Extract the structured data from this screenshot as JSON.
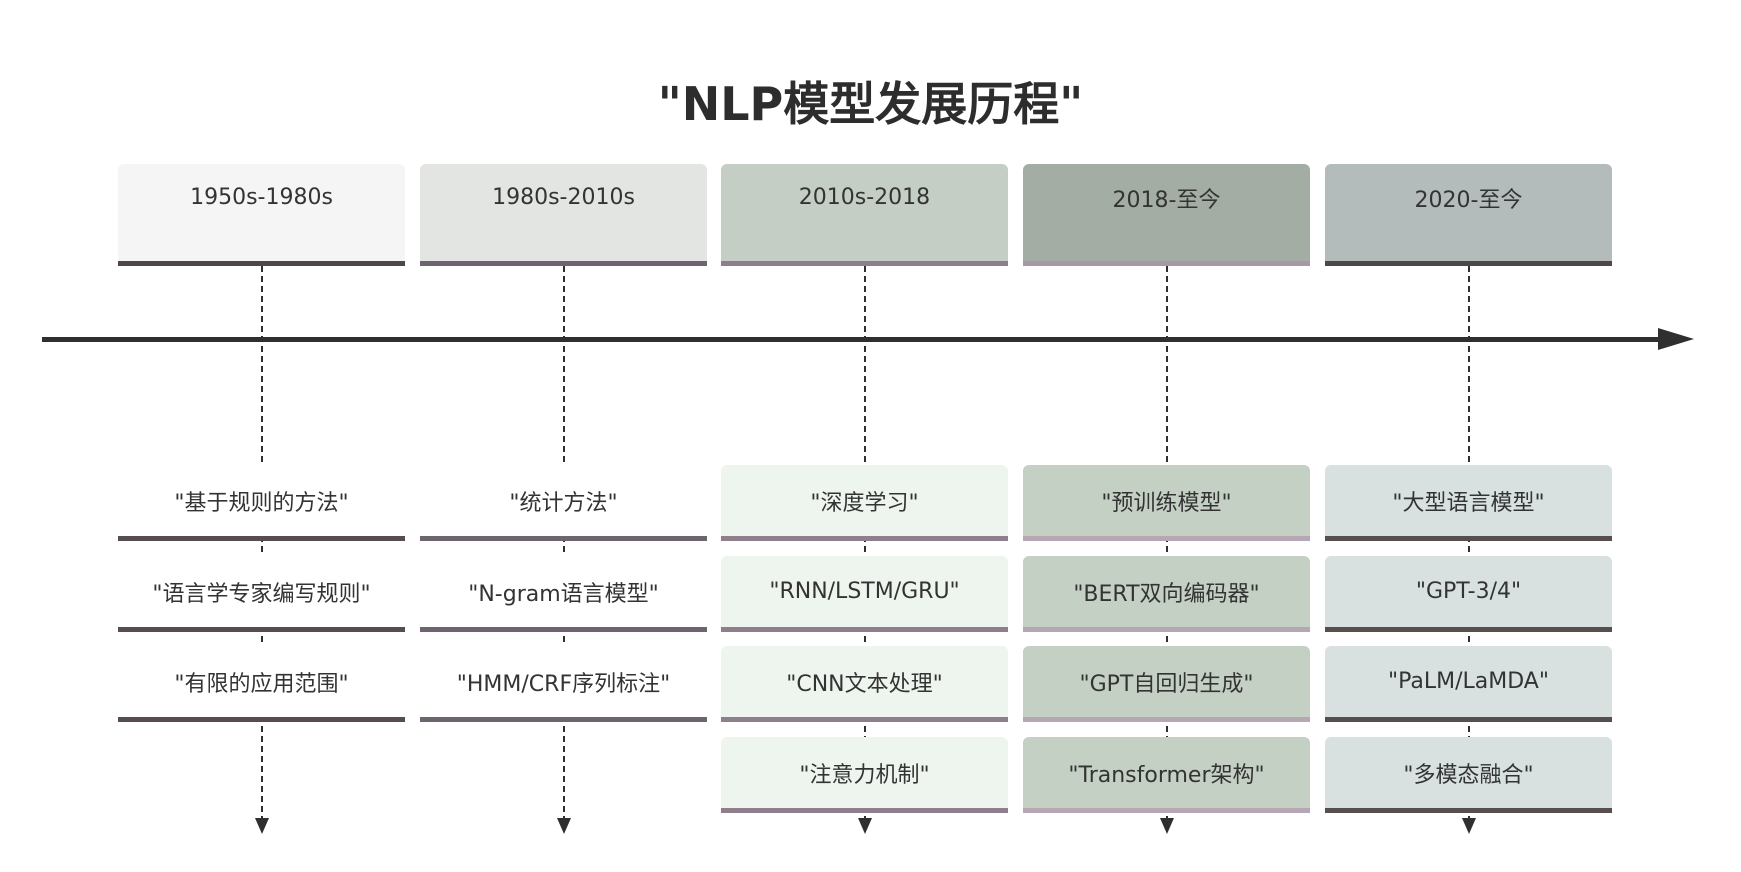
{
  "title": "\"NLP模型发展历程\"",
  "periods": [
    {
      "label": "1950s-1980s",
      "header_bg": "#f5f5f5",
      "header_border": "#4e4648",
      "item_bg": "#ffffff",
      "item_border": "#564c52",
      "items": [
        "\"基于规则的方法\"",
        "\"语言学专家编写规则\"",
        "\"有限的应用范围\""
      ]
    },
    {
      "label": "1980s-2010s",
      "header_bg": "#e3e5e2",
      "header_border": "#6e6470",
      "item_bg": "#ffffff",
      "item_border": "#6e6470",
      "items": [
        "\"统计方法\"",
        "\"N-gram语言模型\"",
        "\"HMM/CRF序列标注\""
      ]
    },
    {
      "label": "2010s-2018",
      "header_bg": "#c5cec5",
      "header_border": "#8e7f8c",
      "item_bg": "#eef4ee",
      "item_border": "#8e7f8c",
      "items": [
        "\"深度学习\"",
        "\"RNN/LSTM/GRU\"",
        "\"CNN文本处理\"",
        "\"注意力机制\""
      ]
    },
    {
      "label": "2018-至今",
      "header_bg": "#a3ada3",
      "header_border": "#a898a5",
      "item_bg": "#c5d0c5",
      "item_border": "#b6a7b4",
      "items": [
        "\"预训练模型\"",
        "\"BERT双向编码器\"",
        "\"GPT自回归生成\"",
        "\"Transformer架构\""
      ]
    },
    {
      "label": "2020-至今",
      "header_bg": "#b3bcbb",
      "header_border": "#4e4648",
      "item_bg": "#d8e0e0",
      "item_border": "#574e4e",
      "items": [
        "\"大型语言模型\"",
        "\"GPT-3/4\"",
        "\"PaLM/LaMDA\"",
        "\"多模态融合\""
      ]
    }
  ]
}
